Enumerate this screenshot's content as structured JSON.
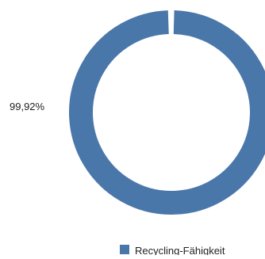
{
  "chart_data": {
    "type": "pie",
    "style": "donut",
    "slices": [
      {
        "label": "Recycling-Fähigkeit",
        "value": 99.92,
        "value_label": "99,92%",
        "color": "#4a77aa"
      }
    ],
    "legend": {
      "position": "bottom",
      "entries": [
        {
          "label": "Recycling-Fähigkeit",
          "color": "#4a77aa"
        }
      ]
    },
    "background": "#ffffff"
  }
}
